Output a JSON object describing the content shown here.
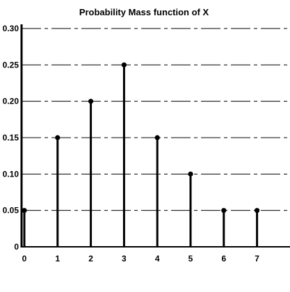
{
  "chart_data": {
    "type": "stem",
    "title": "Probability Mass function of X",
    "xlabel": "",
    "ylabel": "",
    "x": [
      0,
      1,
      2,
      3,
      4,
      5,
      6,
      7
    ],
    "values": [
      0.05,
      0.15,
      0.2,
      0.25,
      0.15,
      0.1,
      0.05,
      0.05
    ],
    "x_tick_labels": [
      "0",
      "1",
      "2",
      "3",
      "4",
      "5",
      "6",
      "7"
    ],
    "y_tick_labels": [
      "0",
      "0.05",
      "0.10",
      "0.15",
      "0.20",
      "0.25",
      "0.30"
    ],
    "y_ticks": [
      0,
      0.05,
      0.1,
      0.15,
      0.2,
      0.25,
      0.3
    ],
    "xlim": [
      0,
      8
    ],
    "ylim": [
      0,
      0.3
    ],
    "grid": "horizontal dash-dot",
    "colors": {
      "stem": "#000000",
      "marker": "#000000",
      "grid": "#000000"
    }
  }
}
